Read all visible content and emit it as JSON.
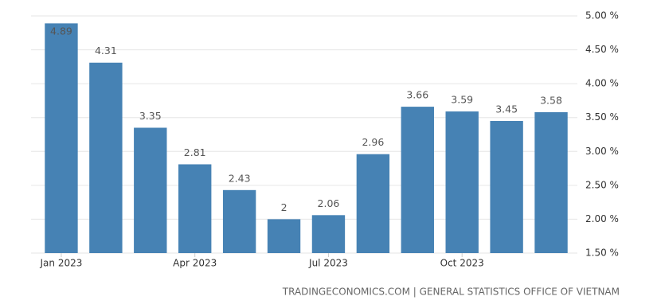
{
  "chart_data": {
    "type": "bar",
    "categories": [
      "Jan 2023",
      null,
      null,
      "Apr 2023",
      null,
      null,
      "Jul 2023",
      null,
      null,
      "Oct 2023",
      null,
      null
    ],
    "values": [
      4.89,
      4.31,
      3.35,
      2.81,
      2.43,
      2,
      2.06,
      2.96,
      3.66,
      3.59,
      3.45,
      3.58
    ],
    "color": "#4682b4",
    "ylim": [
      1.5,
      5.0
    ],
    "yticks": [
      {
        "value": 1.5,
        "label": "1.50 %"
      },
      {
        "value": 2.0,
        "label": "2.00 %"
      },
      {
        "value": 2.5,
        "label": "2.50 %"
      },
      {
        "value": 3.0,
        "label": "3.00 %"
      },
      {
        "value": 3.5,
        "label": "3.50 %"
      },
      {
        "value": 4.0,
        "label": "4.00 %"
      },
      {
        "value": 4.5,
        "label": "4.50 %"
      },
      {
        "value": 5.0,
        "label": "5.00 %"
      }
    ],
    "grid": true,
    "source": "TRADINGECONOMICS.COM | GENERAL STATISTICS OFFICE OF VIETNAM"
  }
}
